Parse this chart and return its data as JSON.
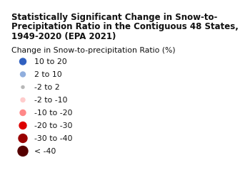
{
  "title_lines": [
    "Statistically Significant Change in Snow-to-",
    "Precipitation Ratio in the Contiguous 48 States,",
    "1949-2020 (EPA 2021)"
  ],
  "subtitle": "Change in Snow-to-precipitation Ratio (%)",
  "background_color": "#ffffff",
  "title_fontsize": 8.5,
  "subtitle_fontsize": 7.8,
  "legend_fontsize": 7.8,
  "legend_entries": [
    {
      "label": "10 to 20",
      "color": "#3060C0",
      "size": 9
    },
    {
      "label": "2 to 10",
      "color": "#90AEDD",
      "size": 7
    },
    {
      "label": "-2 to 2",
      "color": "#B8B8B8",
      "size": 4
    },
    {
      "label": "-2 to -10",
      "color": "#FFCCCC",
      "size": 6
    },
    {
      "label": "-10 to -20",
      "color": "#FF8888",
      "size": 8
    },
    {
      "label": "-20 to -30",
      "color": "#DD0000",
      "size": 10
    },
    {
      "label": "-30 to -40",
      "color": "#990000",
      "size": 12
    },
    {
      "label": "< -40",
      "color": "#550000",
      "size": 14
    }
  ]
}
